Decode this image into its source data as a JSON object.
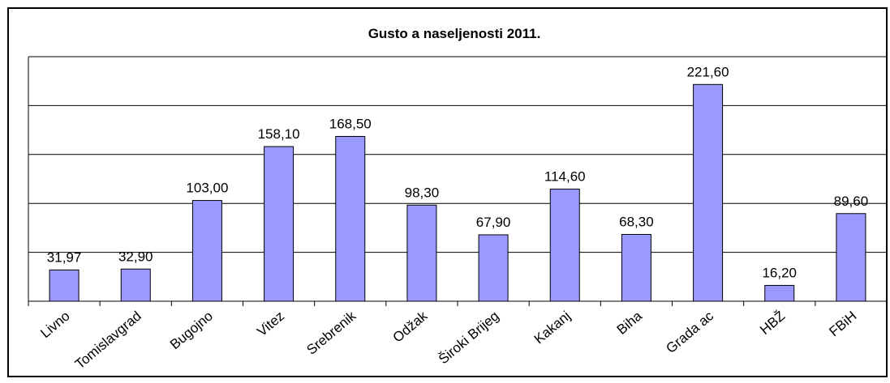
{
  "chart_data": {
    "type": "bar",
    "title": "Gusto  a naseljenosti 2011.",
    "categories": [
      "Livno",
      "Tomislavgrad",
      "Bugojno",
      "Vitez",
      "Srebrenik",
      "Odžak",
      "Široki Brijeg",
      "Kakanj",
      "Biha",
      "Grada  ac",
      "HBŽ",
      "FBiH"
    ],
    "values": [
      31.97,
      32.9,
      103,
      158.1,
      168.5,
      98.3,
      67.9,
      114.6,
      68.3,
      221.6,
      16.2,
      89.6
    ],
    "value_labels": [
      "31,97",
      "32,90",
      "103,00",
      "158,10",
      "168,50",
      "98,30",
      "67,90",
      "114,60",
      "68,30",
      "221,60",
      "16,20",
      "89,60"
    ],
    "color": "#9999ff",
    "ylim": [
      0,
      250
    ],
    "yticks": [
      0,
      50,
      100,
      150,
      200,
      250
    ],
    "grid": true
  }
}
